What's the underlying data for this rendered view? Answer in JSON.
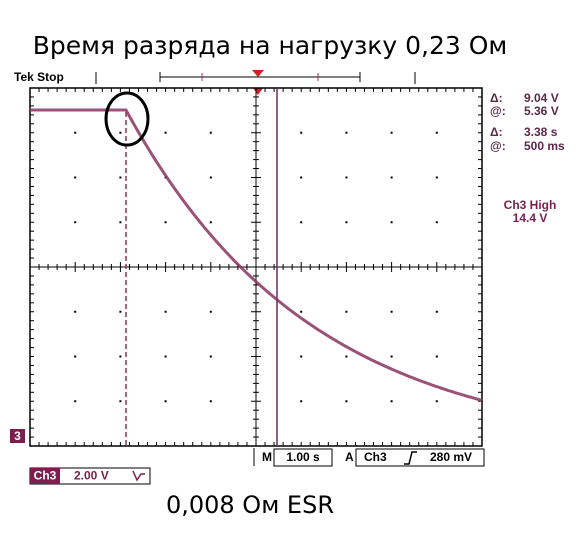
{
  "header": {
    "title": "Время разряда на нагрузку  0,23 Ом",
    "status": "Tek Stop"
  },
  "readouts": [
    {
      "symbol": "Δ:",
      "value": "9.04 V"
    },
    {
      "symbol": "@:",
      "value": "5.36 V"
    },
    {
      "symbol": "Δ:",
      "value": "3.38 s"
    },
    {
      "symbol": "@:",
      "value": "500 ms"
    }
  ],
  "trigger_state": {
    "label": "Ch3 High",
    "value": "14.4 V"
  },
  "channel_marker": "3",
  "bottom_bar": {
    "m_label": "M",
    "timebase": "1.00 s",
    "a_label": "A",
    "trigger_channel": "Ch3",
    "trigger_level": "280 mV"
  },
  "channel_scale": {
    "channel": "Ch3",
    "value": "2.00 V"
  },
  "caption": "0,008 Ом ESR"
}
